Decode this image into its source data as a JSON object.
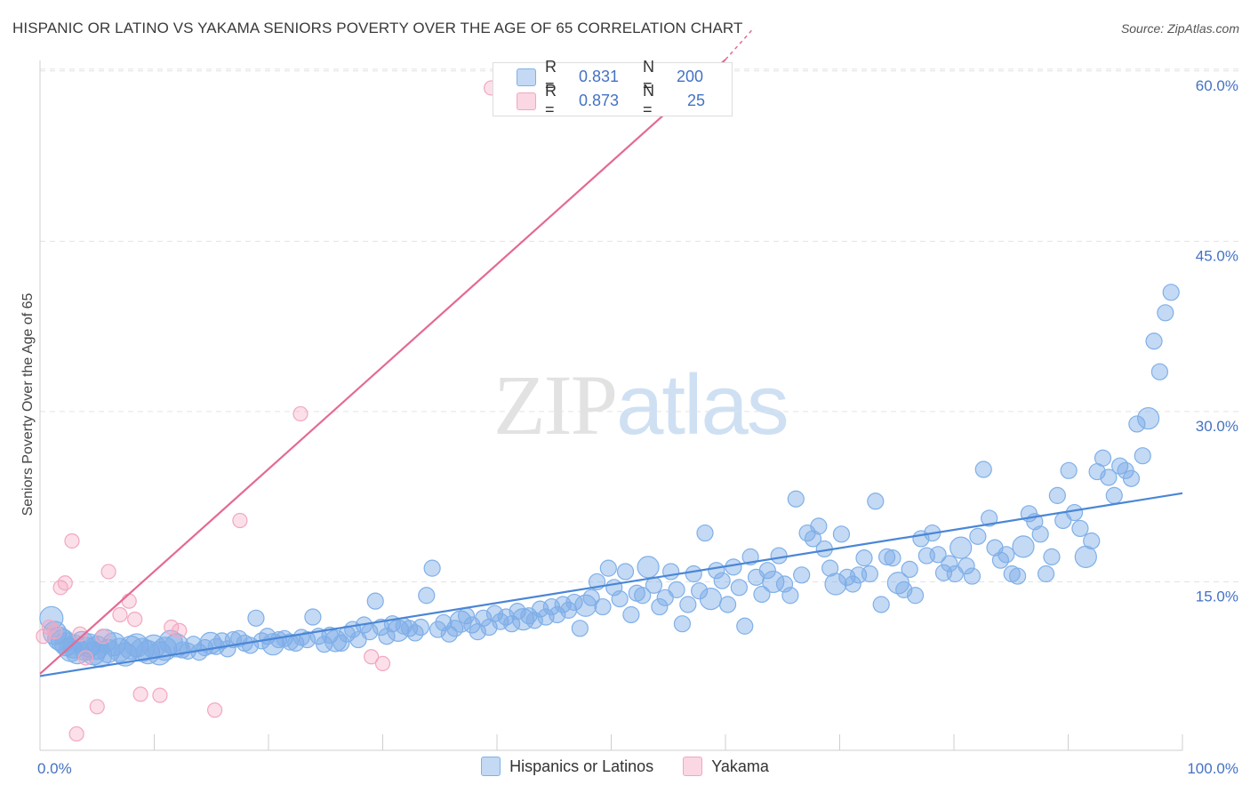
{
  "title": "HISPANIC OR LATINO VS YAKAMA SENIORS POVERTY OVER THE AGE OF 65 CORRELATION CHART",
  "source": "Source: ZipAtlas.com",
  "watermark": {
    "zip": "ZIP",
    "atlas": "atlas"
  },
  "legend_stats": [
    {
      "r_label": "R =",
      "r_value": "0.831",
      "n_label": "N =",
      "n_value": "200",
      "color": "#7fb0e8"
    },
    {
      "r_label": "R =",
      "r_value": "0.873",
      "n_label": "N =",
      "n_value": "25",
      "color": "#f3a6bf"
    }
  ],
  "legend": [
    {
      "label": "Hispanics or Latinos",
      "color": "#7fb0e8"
    },
    {
      "label": "Yakama",
      "color": "#f3a6bf"
    }
  ],
  "colors": {
    "blue": "#4a86d6",
    "blue_fill": "rgba(125,170,230,0.45)",
    "pink": "#e46a93",
    "pink_fill": "rgba(243,166,191,0.35)",
    "tick": "#4472c4"
  },
  "chart_data": {
    "type": "scatter",
    "ylabel": "Seniors Poverty Over the Age of 65",
    "xlabel": "",
    "xlim": [
      0,
      100
    ],
    "ylim": [
      0,
      65
    ],
    "x_ticks": [
      "0.0%",
      "100.0%"
    ],
    "y_ticks": [
      {
        "value": 15,
        "label": "15.0%"
      },
      {
        "value": 30,
        "label": "30.0%"
      },
      {
        "value": 45,
        "label": "45.0%"
      },
      {
        "value": 60,
        "label": "60.0%"
      }
    ],
    "grid": true,
    "series": [
      {
        "name": "Hispanics or Latinos",
        "trend": {
          "x": [
            0,
            100
          ],
          "y": [
            6.7,
            22.8
          ]
        },
        "points": [
          [
            0.5,
            11.8
          ],
          [
            0.8,
            10.5
          ],
          [
            1.2,
            10.0
          ],
          [
            1.5,
            9.8
          ],
          [
            1.8,
            9.5
          ],
          [
            2.2,
            9.0
          ],
          [
            2.5,
            9.3
          ],
          [
            2.8,
            8.8
          ],
          [
            3.2,
            9.6
          ],
          [
            3.5,
            9.1
          ],
          [
            3.8,
            9.4
          ],
          [
            4.2,
            8.7
          ],
          [
            4.5,
            9.2
          ],
          [
            4.8,
            8.5
          ],
          [
            5.2,
            9.8
          ],
          [
            5.5,
            8.9
          ],
          [
            6.0,
            9.5
          ],
          [
            6.5,
            9.0
          ],
          [
            7.0,
            8.6
          ],
          [
            7.5,
            9.2
          ],
          [
            8.0,
            9.4
          ],
          [
            8.5,
            9.0
          ],
          [
            9.0,
            8.8
          ],
          [
            9.5,
            9.3
          ],
          [
            10.0,
            8.7
          ],
          [
            10.5,
            9.1
          ],
          [
            11.0,
            9.7
          ],
          [
            11.5,
            9.4
          ],
          [
            12.0,
            9.0
          ],
          [
            12.5,
            8.9
          ],
          [
            13.0,
            9.5
          ],
          [
            13.5,
            8.8
          ],
          [
            14.0,
            9.2
          ],
          [
            14.5,
            9.6
          ],
          [
            15.0,
            9.3
          ],
          [
            15.5,
            9.8
          ],
          [
            16.0,
            9.1
          ],
          [
            16.5,
            9.9
          ],
          [
            17.0,
            10.0
          ],
          [
            17.5,
            9.6
          ],
          [
            18.0,
            9.4
          ],
          [
            18.5,
            11.8
          ],
          [
            19.0,
            9.8
          ],
          [
            19.5,
            10.2
          ],
          [
            20.0,
            9.5
          ],
          [
            20.5,
            9.9
          ],
          [
            21.0,
            10.0
          ],
          [
            21.5,
            9.7
          ],
          [
            22.0,
            9.6
          ],
          [
            22.5,
            10.1
          ],
          [
            23.0,
            9.9
          ],
          [
            23.5,
            11.9
          ],
          [
            24.0,
            10.2
          ],
          [
            24.5,
            9.5
          ],
          [
            25.0,
            10.3
          ],
          [
            25.5,
            9.8
          ],
          [
            26.0,
            9.6
          ],
          [
            26.5,
            10.4
          ],
          [
            27.0,
            10.8
          ],
          [
            27.5,
            9.9
          ],
          [
            28.0,
            11.2
          ],
          [
            28.5,
            10.6
          ],
          [
            29.0,
            13.3
          ],
          [
            29.5,
            11.0
          ],
          [
            30.0,
            10.2
          ],
          [
            30.5,
            11.3
          ],
          [
            31.0,
            10.7
          ],
          [
            31.5,
            11.1
          ],
          [
            32.0,
            10.9
          ],
          [
            32.5,
            10.5
          ],
          [
            33.0,
            11.0
          ],
          [
            33.5,
            13.8
          ],
          [
            34.0,
            16.2
          ],
          [
            34.5,
            10.8
          ],
          [
            35.0,
            11.4
          ],
          [
            35.5,
            10.4
          ],
          [
            36.0,
            10.9
          ],
          [
            36.5,
            11.5
          ],
          [
            37.0,
            12.0
          ],
          [
            37.5,
            11.2
          ],
          [
            38.0,
            10.6
          ],
          [
            38.5,
            11.8
          ],
          [
            39.0,
            11.0
          ],
          [
            39.5,
            12.2
          ],
          [
            40.0,
            11.5
          ],
          [
            40.5,
            11.9
          ],
          [
            41.0,
            11.3
          ],
          [
            41.5,
            12.4
          ],
          [
            42.0,
            11.7
          ],
          [
            42.5,
            12.0
          ],
          [
            43.0,
            11.6
          ],
          [
            43.5,
            12.6
          ],
          [
            44.0,
            11.9
          ],
          [
            44.5,
            12.8
          ],
          [
            45.0,
            12.1
          ],
          [
            45.5,
            13.0
          ],
          [
            46.0,
            12.5
          ],
          [
            46.5,
            13.2
          ],
          [
            47.0,
            10.9
          ],
          [
            47.5,
            12.9
          ],
          [
            48.0,
            13.6
          ],
          [
            48.5,
            15.0
          ],
          [
            49.0,
            12.8
          ],
          [
            49.5,
            16.2
          ],
          [
            50.0,
            14.5
          ],
          [
            50.5,
            13.5
          ],
          [
            51.0,
            15.9
          ],
          [
            51.5,
            12.1
          ],
          [
            52.0,
            14.0
          ],
          [
            52.5,
            13.8
          ],
          [
            53.0,
            16.3
          ],
          [
            53.5,
            14.7
          ],
          [
            54.0,
            12.8
          ],
          [
            54.5,
            13.6
          ],
          [
            55.0,
            15.9
          ],
          [
            55.5,
            14.3
          ],
          [
            56.0,
            11.3
          ],
          [
            56.5,
            13.0
          ],
          [
            57.0,
            15.7
          ],
          [
            57.5,
            14.2
          ],
          [
            58.0,
            19.3
          ],
          [
            58.5,
            13.5
          ],
          [
            59.0,
            16.0
          ],
          [
            59.5,
            15.1
          ],
          [
            60.0,
            13.0
          ],
          [
            60.5,
            16.3
          ],
          [
            61.0,
            14.5
          ],
          [
            61.5,
            11.1
          ],
          [
            62.0,
            17.2
          ],
          [
            62.5,
            15.4
          ],
          [
            63.0,
            13.9
          ],
          [
            63.5,
            16.0
          ],
          [
            64.0,
            15.0
          ],
          [
            64.5,
            17.3
          ],
          [
            65.0,
            14.8
          ],
          [
            65.5,
            13.8
          ],
          [
            66.0,
            22.3
          ],
          [
            66.5,
            15.6
          ],
          [
            67.0,
            19.3
          ],
          [
            67.5,
            18.8
          ],
          [
            68.0,
            19.9
          ],
          [
            68.5,
            17.9
          ],
          [
            69.0,
            16.2
          ],
          [
            69.5,
            14.8
          ],
          [
            70.0,
            19.2
          ],
          [
            70.5,
            15.4
          ],
          [
            71.0,
            14.8
          ],
          [
            71.5,
            15.6
          ],
          [
            72.0,
            17.1
          ],
          [
            72.5,
            15.7
          ],
          [
            73.0,
            22.1
          ],
          [
            73.5,
            13.0
          ],
          [
            74.0,
            17.2
          ],
          [
            74.5,
            17.1
          ],
          [
            75.0,
            14.9
          ],
          [
            75.5,
            14.3
          ],
          [
            76.0,
            16.1
          ],
          [
            76.5,
            13.8
          ],
          [
            77.0,
            18.8
          ],
          [
            77.5,
            17.3
          ],
          [
            78.0,
            19.3
          ],
          [
            78.5,
            17.4
          ],
          [
            79.0,
            15.8
          ],
          [
            79.5,
            16.6
          ],
          [
            80.0,
            15.7
          ],
          [
            80.5,
            18.0
          ],
          [
            81.0,
            16.4
          ],
          [
            81.5,
            15.5
          ],
          [
            82.0,
            19.0
          ],
          [
            82.5,
            24.9
          ],
          [
            83.0,
            20.6
          ],
          [
            83.5,
            18.0
          ],
          [
            84.0,
            16.9
          ],
          [
            84.5,
            17.4
          ],
          [
            85.0,
            15.7
          ],
          [
            85.5,
            15.5
          ],
          [
            86.0,
            18.1
          ],
          [
            86.5,
            21.0
          ],
          [
            87.0,
            20.3
          ],
          [
            87.5,
            19.2
          ],
          [
            88.0,
            15.7
          ],
          [
            88.5,
            17.2
          ],
          [
            89.0,
            22.6
          ],
          [
            89.5,
            20.4
          ],
          [
            90.0,
            24.8
          ],
          [
            90.5,
            21.1
          ],
          [
            91.0,
            19.7
          ],
          [
            91.5,
            17.2
          ],
          [
            92.0,
            18.6
          ],
          [
            92.5,
            24.7
          ],
          [
            93.0,
            25.9
          ],
          [
            93.5,
            24.2
          ],
          [
            94.0,
            22.6
          ],
          [
            94.5,
            25.2
          ],
          [
            95.0,
            24.8
          ],
          [
            95.5,
            24.1
          ],
          [
            96.0,
            28.9
          ],
          [
            96.5,
            26.1
          ],
          [
            97.0,
            29.4
          ],
          [
            97.5,
            36.2
          ]
        ],
        "extra_points": [
          [
            98.0,
            33.5
          ],
          [
            98.5,
            38.7
          ],
          [
            99.0,
            40.5
          ]
        ]
      },
      {
        "name": "Yakama",
        "trend": {
          "x": [
            0,
            61
          ],
          "y": [
            6.9,
            62.0
          ]
        },
        "points": [
          [
            0.3,
            10.2
          ],
          [
            0.8,
            11.0
          ],
          [
            1.3,
            10.6
          ],
          [
            1.8,
            14.5
          ],
          [
            2.2,
            14.9
          ],
          [
            2.8,
            18.6
          ],
          [
            3.5,
            10.4
          ],
          [
            4.0,
            8.3
          ],
          [
            5.0,
            4.0
          ],
          [
            5.5,
            10.2
          ],
          [
            6.0,
            15.9
          ],
          [
            7.0,
            12.1
          ],
          [
            7.8,
            13.3
          ],
          [
            8.3,
            11.7
          ],
          [
            8.8,
            5.1
          ],
          [
            10.5,
            5.0
          ],
          [
            11.5,
            11.0
          ],
          [
            12.2,
            10.7
          ],
          [
            15.3,
            3.7
          ],
          [
            17.5,
            20.4
          ],
          [
            22.8,
            29.8
          ],
          [
            29.0,
            8.4
          ],
          [
            30.0,
            7.8
          ],
          [
            39.5,
            58.5
          ],
          [
            3.2,
            1.6
          ]
        ]
      }
    ]
  }
}
